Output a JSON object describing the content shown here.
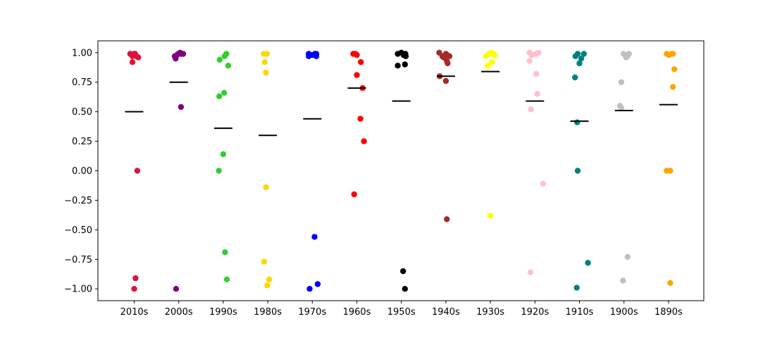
{
  "chart_data": {
    "type": "scatter",
    "title": "",
    "xlabel": "",
    "ylabel": "",
    "categories": [
      "2010s",
      "2000s",
      "1990s",
      "1980s",
      "1970s",
      "1960s",
      "1950s",
      "1940s",
      "1930s",
      "1920s",
      "1910s",
      "1900s",
      "1890s"
    ],
    "ylim": [
      -1.1,
      1.1
    ],
    "yticks": [
      "−1.00",
      "−0.75",
      "−0.50",
      "−0.25",
      "0.00",
      "0.25",
      "0.50",
      "0.75",
      "1.00"
    ],
    "ytick_values": [
      -1.0,
      -0.75,
      -0.5,
      -0.25,
      0.0,
      0.25,
      0.5,
      0.75,
      1.0
    ],
    "grid": false,
    "mean_marker_color": "#000000",
    "series": [
      {
        "category": "2010s",
        "color": "#dc143c",
        "mean": 0.5,
        "points": [
          [
            -0.09,
            0.99
          ],
          [
            -0.04,
            0.97
          ],
          [
            0.0,
            0.99
          ],
          [
            0.02,
            0.99
          ],
          [
            0.05,
            0.97
          ],
          [
            0.09,
            0.96
          ],
          [
            0.03,
            0.98
          ],
          [
            -0.04,
            0.92
          ],
          [
            0.07,
            0.0
          ],
          [
            0.03,
            -0.91
          ],
          [
            0.0,
            -1.0
          ]
        ]
      },
      {
        "category": "2000s",
        "color": "#800080",
        "mean": 0.75,
        "points": [
          [
            -0.09,
            0.97
          ],
          [
            -0.07,
            0.95
          ],
          [
            -0.04,
            0.98
          ],
          [
            -0.01,
            0.99
          ],
          [
            0.03,
            1.0
          ],
          [
            0.06,
            0.99
          ],
          [
            0.1,
            0.99
          ],
          [
            0.05,
            0.54
          ],
          [
            -0.06,
            -1.0
          ]
        ]
      },
      {
        "category": "1990s",
        "color": "#32cd32",
        "mean": 0.36,
        "points": [
          [
            0.07,
            0.99
          ],
          [
            0.03,
            0.97
          ],
          [
            -0.08,
            0.94
          ],
          [
            0.11,
            0.89
          ],
          [
            0.02,
            0.66
          ],
          [
            -0.09,
            0.63
          ],
          [
            0.0,
            0.14
          ],
          [
            -0.1,
            0.0
          ],
          [
            0.04,
            -0.69
          ],
          [
            0.08,
            -0.92
          ]
        ]
      },
      {
        "category": "1980s",
        "color": "#ffd700",
        "mean": 0.3,
        "points": [
          [
            -0.09,
            0.99
          ],
          [
            -0.02,
            0.99
          ],
          [
            -0.07,
            0.92
          ],
          [
            -0.04,
            0.83
          ],
          [
            -0.04,
            -0.14
          ],
          [
            -0.08,
            -0.77
          ],
          [
            0.03,
            -0.92
          ],
          [
            -0.01,
            -0.97
          ]
        ]
      },
      {
        "category": "1970s",
        "color": "#0000ff",
        "mean": 0.44,
        "points": [
          [
            -0.08,
            0.99
          ],
          [
            -0.05,
            0.98
          ],
          [
            0.0,
            0.98
          ],
          [
            0.06,
            0.99
          ],
          [
            0.09,
            0.97
          ],
          [
            -0.08,
            0.97
          ],
          [
            0.09,
            0.99
          ],
          [
            0.05,
            -0.56
          ],
          [
            0.12,
            -0.96
          ],
          [
            -0.06,
            -1.0
          ]
        ]
      },
      {
        "category": "1960s",
        "color": "#ff0000",
        "mean": 0.7,
        "points": [
          [
            -0.08,
            0.99
          ],
          [
            -0.03,
            0.99
          ],
          [
            0.0,
            0.98
          ],
          [
            0.09,
            0.92
          ],
          [
            0.0,
            0.81
          ],
          [
            0.13,
            0.7
          ],
          [
            0.08,
            0.44
          ],
          [
            0.16,
            0.25
          ],
          [
            -0.06,
            -0.2
          ]
        ]
      },
      {
        "category": "1950s",
        "color": "#000000",
        "mean": 0.59,
        "points": [
          [
            -0.08,
            0.99
          ],
          [
            0.0,
            1.0
          ],
          [
            0.05,
            0.98
          ],
          [
            0.09,
            0.99
          ],
          [
            0.1,
            0.97
          ],
          [
            -0.08,
            0.89
          ],
          [
            0.08,
            0.9
          ],
          [
            0.04,
            -0.85
          ],
          [
            0.08,
            -1.0
          ]
        ]
      },
      {
        "category": "1940s",
        "color": "#a52a2a",
        "mean": 0.8,
        "points": [
          [
            -0.15,
            1.0
          ],
          [
            -0.08,
            0.97
          ],
          [
            0.0,
            0.99
          ],
          [
            0.08,
            0.97
          ],
          [
            0.03,
            0.98
          ],
          [
            -0.05,
            0.96
          ],
          [
            0.02,
            0.93
          ],
          [
            0.04,
            0.91
          ],
          [
            -0.14,
            0.8
          ],
          [
            -0.0,
            0.76
          ],
          [
            0.02,
            -0.41
          ]
        ]
      },
      {
        "category": "1930s",
        "color": "#ffff00",
        "mean": 0.84,
        "points": [
          [
            -0.1,
            0.97
          ],
          [
            -0.03,
            0.99
          ],
          [
            0.02,
            1.0
          ],
          [
            0.07,
            0.99
          ],
          [
            0.1,
            0.98
          ],
          [
            -0.06,
            0.89
          ],
          [
            0.04,
            0.92
          ],
          [
            -0.0,
            -0.38
          ]
        ]
      },
      {
        "category": "1920s",
        "color": "#ffc0cb",
        "mean": 0.59,
        "points": [
          [
            -0.12,
            1.0
          ],
          [
            -0.07,
            0.98
          ],
          [
            0.02,
            0.99
          ],
          [
            0.08,
            1.0
          ],
          [
            -0.12,
            0.93
          ],
          [
            0.03,
            0.82
          ],
          [
            0.05,
            0.65
          ],
          [
            -0.09,
            0.52
          ],
          [
            0.18,
            -0.11
          ],
          [
            -0.1,
            -0.86
          ]
        ]
      },
      {
        "category": "1910s",
        "color": "#008080",
        "mean": 0.42,
        "points": [
          [
            -0.09,
            0.97
          ],
          [
            -0.04,
            0.99
          ],
          [
            0.04,
            0.95
          ],
          [
            0.1,
            0.99
          ],
          [
            0.0,
            0.91
          ],
          [
            -0.1,
            0.79
          ],
          [
            -0.05,
            0.41
          ],
          [
            -0.04,
            0.0
          ],
          [
            0.19,
            -0.78
          ],
          [
            -0.06,
            -0.99
          ]
        ]
      },
      {
        "category": "1900s",
        "color": "#c0c0c0",
        "mean": 0.51,
        "points": [
          [
            -0.01,
            0.99
          ],
          [
            0.05,
            0.96
          ],
          [
            0.11,
            0.99
          ],
          [
            0.08,
            0.97
          ],
          [
            -0.06,
            0.75
          ],
          [
            -0.09,
            0.55
          ],
          [
            -0.06,
            0.53
          ],
          [
            0.08,
            -0.73
          ],
          [
            -0.02,
            -0.93
          ]
        ]
      },
      {
        "category": "1890s",
        "color": "#ffa500",
        "mean": 0.56,
        "points": [
          [
            -0.04,
            0.99
          ],
          [
            0.01,
            0.98
          ],
          [
            0.07,
            0.99
          ],
          [
            0.1,
            0.99
          ],
          [
            0.13,
            0.86
          ],
          [
            0.1,
            0.71
          ],
          [
            -0.04,
            0.0
          ],
          [
            0.04,
            0.0
          ],
          [
            0.04,
            -0.95
          ]
        ]
      }
    ]
  }
}
